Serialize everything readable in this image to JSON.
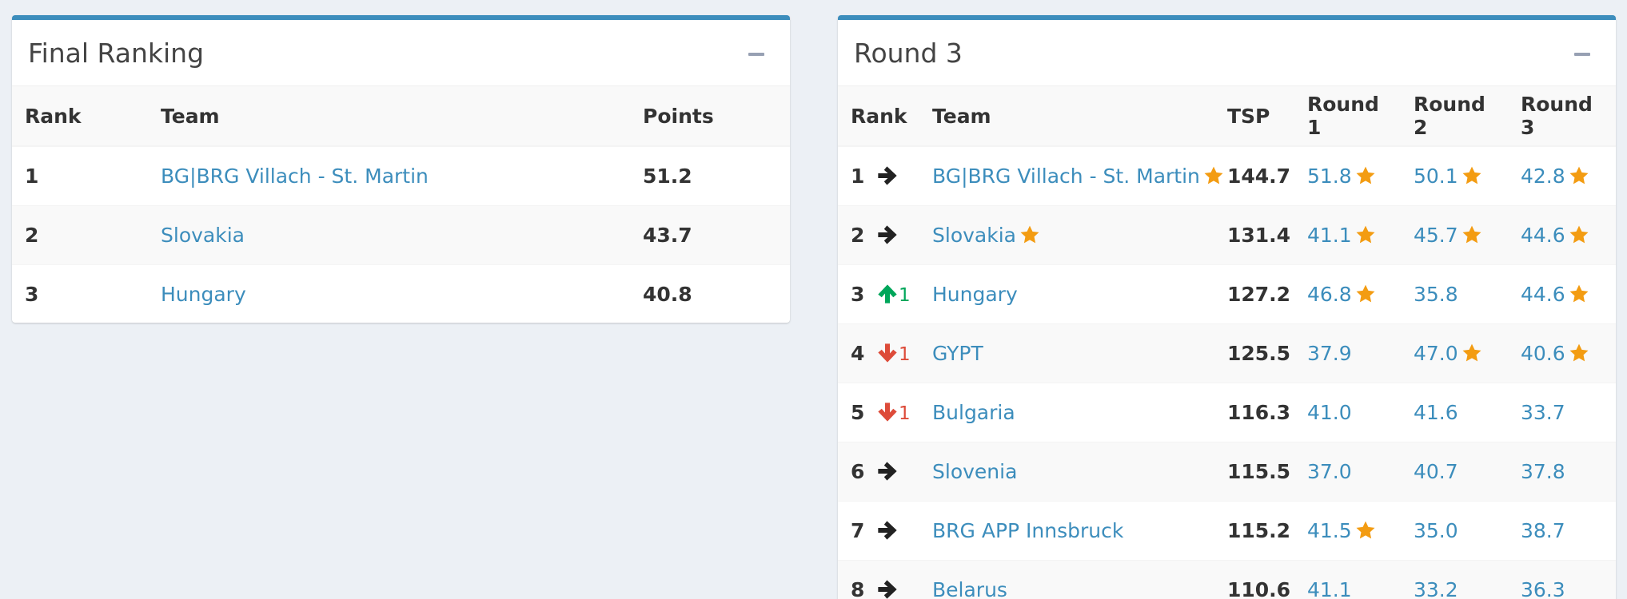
{
  "final_ranking": {
    "title": "Final Ranking",
    "columns": [
      "Rank",
      "Team",
      "Points"
    ],
    "rows": [
      {
        "rank": "1",
        "team": "BG|BRG Villach - St. Martin",
        "points": "51.2"
      },
      {
        "rank": "2",
        "team": "Slovakia",
        "points": "43.7"
      },
      {
        "rank": "3",
        "team": "Hungary",
        "points": "40.8"
      }
    ]
  },
  "round3": {
    "title": "Round 3",
    "columns": [
      "Rank",
      "Team",
      "TSP",
      "Round 1",
      "Round 2",
      "Round 3"
    ],
    "rows": [
      {
        "rank": "1",
        "move": "same",
        "move_n": "",
        "team": "BG|BRG Villach - St. Martin",
        "team_star": true,
        "tsp": "144.7",
        "r1": "51.8",
        "r1_star": true,
        "r2": "50.1",
        "r2_star": true,
        "r3": "42.8",
        "r3_star": true
      },
      {
        "rank": "2",
        "move": "same",
        "move_n": "",
        "team": "Slovakia",
        "team_star": true,
        "tsp": "131.4",
        "r1": "41.1",
        "r1_star": true,
        "r2": "45.7",
        "r2_star": true,
        "r3": "44.6",
        "r3_star": true
      },
      {
        "rank": "3",
        "move": "up",
        "move_n": "1",
        "team": "Hungary",
        "team_star": false,
        "tsp": "127.2",
        "r1": "46.8",
        "r1_star": true,
        "r2": "35.8",
        "r2_star": false,
        "r3": "44.6",
        "r3_star": true
      },
      {
        "rank": "4",
        "move": "down",
        "move_n": "1",
        "team": "GYPT",
        "team_star": false,
        "tsp": "125.5",
        "r1": "37.9",
        "r1_star": false,
        "r2": "47.0",
        "r2_star": true,
        "r3": "40.6",
        "r3_star": true
      },
      {
        "rank": "5",
        "move": "down",
        "move_n": "1",
        "team": "Bulgaria",
        "team_star": false,
        "tsp": "116.3",
        "r1": "41.0",
        "r1_star": false,
        "r2": "41.6",
        "r2_star": false,
        "r3": "33.7",
        "r3_star": false
      },
      {
        "rank": "6",
        "move": "same",
        "move_n": "",
        "team": "Slovenia",
        "team_star": false,
        "tsp": "115.5",
        "r1": "37.0",
        "r1_star": false,
        "r2": "40.7",
        "r2_star": false,
        "r3": "37.8",
        "r3_star": false
      },
      {
        "rank": "7",
        "move": "same",
        "move_n": "",
        "team": "BRG APP Innsbruck",
        "team_star": false,
        "tsp": "115.2",
        "r1": "41.5",
        "r1_star": true,
        "r2": "35.0",
        "r2_star": false,
        "r3": "38.7",
        "r3_star": false
      },
      {
        "rank": "8",
        "move": "same",
        "move_n": "",
        "team": "Belarus",
        "team_star": false,
        "tsp": "110.6",
        "r1": "41.1",
        "r1_star": false,
        "r2": "33.2",
        "r2_star": false,
        "r3": "36.3",
        "r3_star": false
      }
    ]
  },
  "colors": {
    "accent": "#3c8dbc",
    "star": "#f39c12",
    "up": "#00a65a",
    "down": "#dd4b39"
  },
  "icons": {
    "collapse": "minus-icon",
    "star": "star-icon",
    "same": "arrow-right-icon",
    "up": "arrow-up-icon",
    "down": "arrow-down-icon"
  }
}
